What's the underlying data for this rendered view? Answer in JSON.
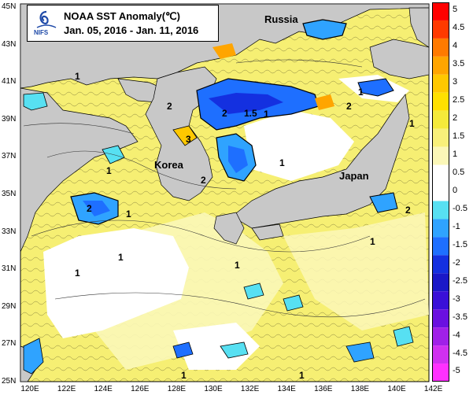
{
  "title": {
    "line1": "NOAA SST Anomaly(℃)",
    "line2": "Jan. 05, 2016 - Jan. 11, 2016",
    "logo_text": "NIFS",
    "logo_icon": "nifs-logo-icon"
  },
  "places": {
    "russia": "Russia",
    "korea": "Korea",
    "japan": "Japan"
  },
  "lat_labels": [
    "45N",
    "43N",
    "41N",
    "39N",
    "37N",
    "35N",
    "33N",
    "31N",
    "29N",
    "27N",
    "25N"
  ],
  "lon_labels": [
    "120E",
    "122E",
    "124E",
    "126E",
    "128E",
    "130E",
    "132E",
    "134E",
    "136E",
    "138E",
    "140E",
    "142E"
  ],
  "colorbar": {
    "labels": [
      "5",
      "4.5",
      "4",
      "3.5",
      "3",
      "2.5",
      "2",
      "1.5",
      "1",
      "0.5",
      "0",
      "-0.5",
      "-1",
      "-1.5",
      "-2",
      "-2.5",
      "-3",
      "-3.5",
      "-4",
      "-4.5",
      "-5"
    ],
    "colors": [
      "#ff0000",
      "#ff3a00",
      "#ff7a00",
      "#ffa500",
      "#ffc800",
      "#ffe000",
      "#f5ea3a",
      "#f8f07a",
      "#fbf7b8",
      "#ffffff",
      "#ffffff",
      "#57e0f2",
      "#2fa3ff",
      "#1e6fff",
      "#1430e0",
      "#1a18c8",
      "#3a10d8",
      "#6a10e0",
      "#a020e8",
      "#d030f0",
      "#ff30ff"
    ]
  },
  "contour_labels": [
    "1",
    "1",
    "1",
    "2",
    "3",
    "2",
    "2",
    "1.5",
    "1",
    "1",
    "2",
    "1",
    "1",
    "2",
    "2",
    "1",
    "1",
    "1",
    "1",
    "1",
    "1",
    "1"
  ]
}
